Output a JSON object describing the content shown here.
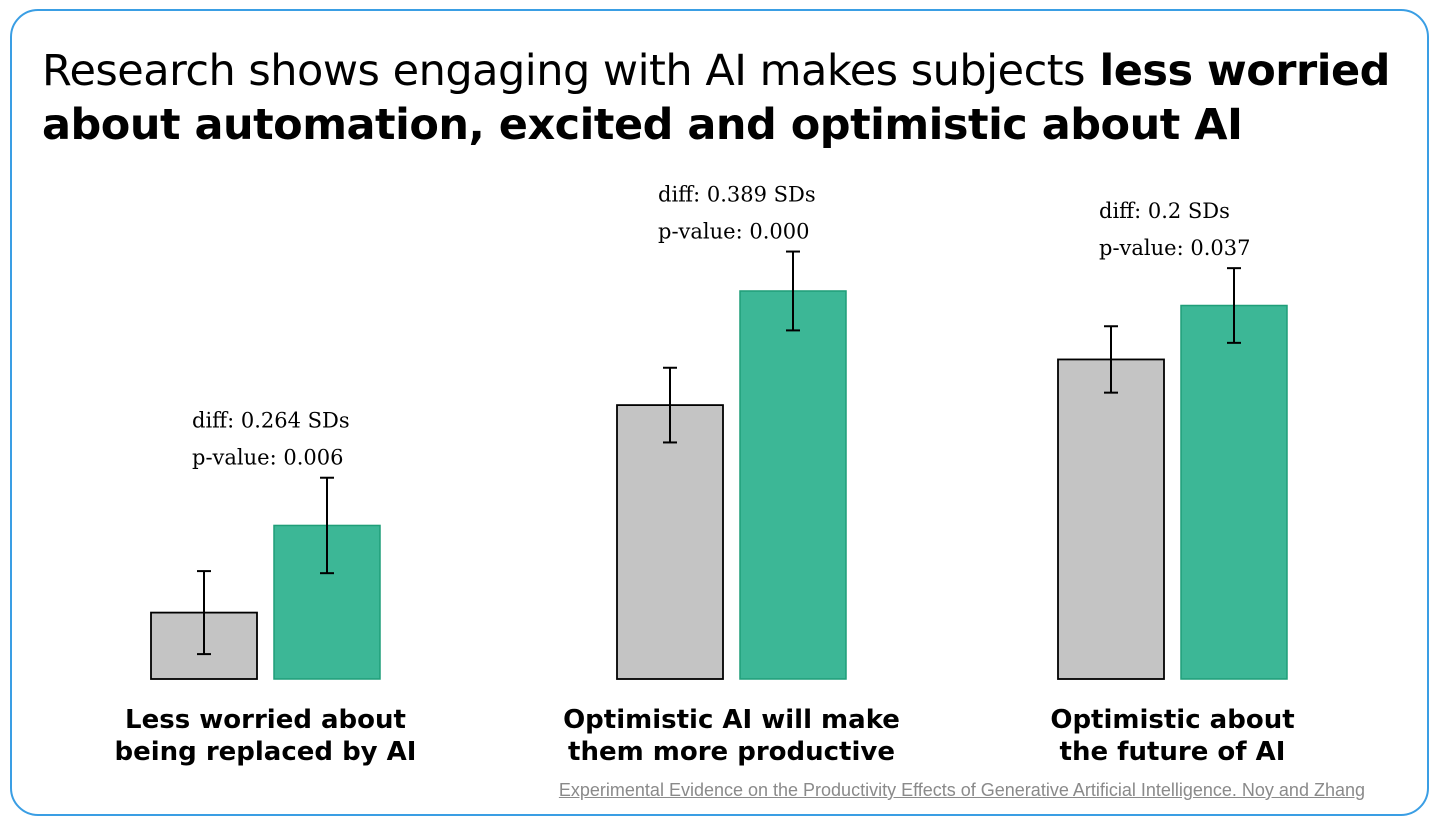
{
  "title": {
    "lead": "Research shows engaging with AI makes subjects",
    "emphasis": "less worried about automation, excited and optimistic about AI"
  },
  "source": "Experimental Evidence on the Productivity Effects of Generative Artificial Intelligence. Noy and Zhang",
  "colors": {
    "control": "#c4c4c4",
    "treatment": "#3cb796",
    "treatment_border": "#1f9e78",
    "frame": "#3a9ee4"
  },
  "chart_data": {
    "type": "bar",
    "categories": [
      [
        "Less worried about",
        "being replaced by AI"
      ],
      [
        "Optimistic AI will make",
        "them more productive"
      ],
      [
        "Optimistic about",
        "the future of AI"
      ]
    ],
    "ylim": [
      0,
      1
    ],
    "grid": false,
    "legend": "none",
    "groups": [
      {
        "bars": [
          {
            "value": 0.16,
            "err": 0.1
          },
          {
            "value": 0.37,
            "err": 0.115
          }
        ],
        "annotation": [
          "diff: 0.264 SDs",
          "p-value: 0.006"
        ]
      },
      {
        "bars": [
          {
            "value": 0.66,
            "err": 0.09
          },
          {
            "value": 0.935,
            "err": 0.095
          }
        ],
        "annotation": [
          "diff: 0.389 SDs",
          "p-value: 0.000"
        ]
      },
      {
        "bars": [
          {
            "value": 0.77,
            "err": 0.08
          },
          {
            "value": 0.9,
            "err": 0.09
          }
        ],
        "annotation": [
          "diff: 0.2 SDs",
          "p-value: 0.037"
        ]
      }
    ]
  }
}
